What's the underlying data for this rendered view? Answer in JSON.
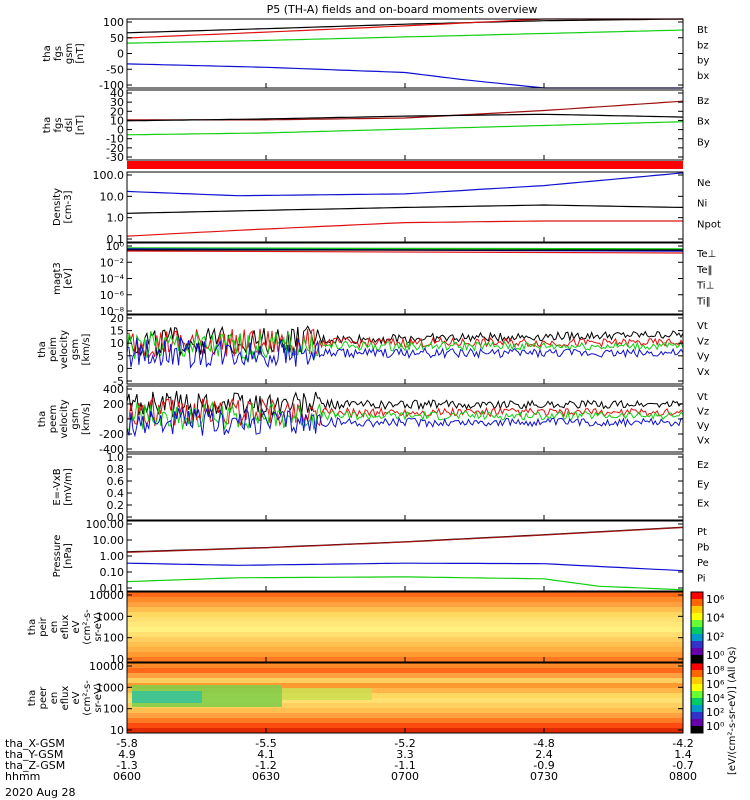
{
  "title": "P5 (TH-A) fields and on-board moments overview",
  "date_label": "2020 Aug 28",
  "colorbar": {
    "label": "[eV/(cm²-s-sr-eV)] (All Qs)",
    "ticks1": [
      "10⁶",
      "10⁴",
      "10²",
      "10⁰"
    ],
    "ticks2": [
      "10⁸",
      "10⁶",
      "10⁴",
      "10²",
      "10⁰"
    ]
  },
  "footer": {
    "rows": [
      {
        "label": "tha_X-GSM",
        "values": [
          "-5.8",
          "-5.5",
          "-5.2",
          "-4.8",
          "-4.2"
        ]
      },
      {
        "label": "tha_Y-GSM",
        "values": [
          "4.9",
          "4.1",
          "3.3",
          "2.4",
          "1.4"
        ]
      },
      {
        "label": "tha_Z-GSM",
        "values": [
          "-1.3",
          "-1.2",
          "-1.1",
          "-0.9",
          "-0.7"
        ]
      },
      {
        "label": "hhmm",
        "values": [
          "0600",
          "0630",
          "0700",
          "0730",
          "0800"
        ]
      }
    ]
  },
  "chart_data": [
    {
      "type": "line",
      "panel": "fgs_gsm",
      "ylabel": [
        "tha",
        "fgs",
        "gsm",
        "[nT]"
      ],
      "yticks": [
        "100",
        "50",
        "0",
        "-50",
        "-100"
      ],
      "ylim": [
        -100,
        100
      ],
      "series": [
        {
          "name": "Bt",
          "color": "#000000",
          "x": [
            0,
            0.25,
            0.5,
            0.75,
            1
          ],
          "y": [
            60,
            72,
            85,
            95,
            100
          ]
        },
        {
          "name": "bz",
          "color": "#e01010",
          "x": [
            0,
            0.25,
            0.5,
            0.75,
            1
          ],
          "y": [
            45,
            62,
            80,
            100,
            100
          ]
        },
        {
          "name": "by",
          "color": "#10d010",
          "x": [
            0,
            0.25,
            0.5,
            0.75,
            1
          ],
          "y": [
            30,
            38,
            48,
            58,
            68
          ]
        },
        {
          "name": "bx",
          "color": "#1010d0",
          "x": [
            0,
            0.25,
            0.5,
            0.6,
            0.75,
            1
          ],
          "y": [
            -30,
            -40,
            -55,
            -75,
            -100,
            -100
          ]
        }
      ]
    },
    {
      "type": "line",
      "panel": "fgs_dsl",
      "ylabel": [
        "tha",
        "fgs",
        "dsl",
        "[nT]"
      ],
      "yticks": [
        "40",
        "30",
        "20",
        "10",
        "0",
        "-10",
        "-20",
        "-30"
      ],
      "ylim": [
        -35,
        40
      ],
      "series": [
        {
          "name": "Bz",
          "color": "#a01010",
          "x": [
            0,
            0.25,
            0.5,
            0.75,
            1
          ],
          "y": [
            8,
            8,
            10,
            18,
            28
          ]
        },
        {
          "name": "Bx",
          "color": "#000000",
          "x": [
            0,
            0.25,
            0.5,
            0.75,
            1
          ],
          "y": [
            7,
            9,
            12,
            14,
            11
          ]
        },
        {
          "name": "By",
          "color": "#10d010",
          "x": [
            0,
            0.25,
            0.5,
            0.75,
            1
          ],
          "y": [
            -8,
            -6,
            -2,
            2,
            6
          ]
        }
      ]
    },
    {
      "type": "line",
      "panel": "density",
      "ylabel": [
        "Density",
        "[cm-3]"
      ],
      "yticks": [
        "100.0",
        "10.0",
        "1.0",
        "0.1"
      ],
      "ylim": [
        0.05,
        200
      ],
      "scale": "log",
      "series": [
        {
          "name": "Ne",
          "color": "#1010d0",
          "x": [
            0,
            0.2,
            0.5,
            0.75,
            1
          ],
          "y": [
            20,
            12,
            15,
            40,
            180
          ]
        },
        {
          "name": "Ni",
          "color": "#000000",
          "x": [
            0,
            0.2,
            0.5,
            0.75,
            1
          ],
          "y": [
            1.5,
            2,
            3,
            4,
            3
          ]
        },
        {
          "name": "Npot",
          "color": "#e01010",
          "x": [
            0,
            0.2,
            0.5,
            0.75,
            1
          ],
          "y": [
            0.1,
            0.2,
            0.5,
            0.6,
            0.6
          ]
        }
      ]
    },
    {
      "type": "line",
      "panel": "temperature",
      "ylabel": [
        "magt3",
        "[eV]"
      ],
      "yticks": [
        "10⁰",
        "10⁻²",
        "10⁻⁴",
        "10⁻⁶",
        "10⁻⁸"
      ],
      "series": [
        {
          "name": "Te⊥",
          "color": "#e01010"
        },
        {
          "name": "Te‖",
          "color": "#000000"
        },
        {
          "name": "Ti⊥",
          "color": "#1010d0"
        },
        {
          "name": "Ti‖",
          "color": "#10d010"
        }
      ]
    },
    {
      "type": "line",
      "panel": "peim_velocity",
      "ylabel": [
        "tha",
        "peim",
        "velocity",
        "gsm",
        "[km/s]"
      ],
      "yticks": [
        "20",
        "15",
        "10",
        "5",
        "0",
        "-5"
      ],
      "ylim": [
        -7,
        20
      ],
      "series": [
        {
          "name": "Vt",
          "color": "#000000"
        },
        {
          "name": "Vz",
          "color": "#e01010"
        },
        {
          "name": "Vy",
          "color": "#10d010"
        },
        {
          "name": "Vx",
          "color": "#1010d0"
        }
      ]
    },
    {
      "type": "line",
      "panel": "peem_velocity",
      "ylabel": [
        "tha",
        "peem",
        "velocity",
        "gsm",
        "[km/s]"
      ],
      "yticks": [
        "400",
        "200",
        "0",
        "-200",
        "-400"
      ],
      "ylim": [
        -400,
        400
      ],
      "series": [
        {
          "name": "Vt",
          "color": "#000000"
        },
        {
          "name": "Vz",
          "color": "#e01010"
        },
        {
          "name": "Vy",
          "color": "#10d010"
        },
        {
          "name": "Vx",
          "color": "#1010d0"
        }
      ]
    },
    {
      "type": "line",
      "panel": "efield",
      "ylabel": [
        "E=-VxB",
        "[mV/m]"
      ],
      "yticks": [
        "1.0",
        "0.8",
        "0.6",
        "0.4",
        "0.2",
        "0.0"
      ],
      "ylim": [
        0,
        1
      ],
      "series": [
        {
          "name": "Ez",
          "color": "#e01010"
        },
        {
          "name": "Ey",
          "color": "#10d010"
        },
        {
          "name": "Ex",
          "color": "#1010d0"
        }
      ]
    },
    {
      "type": "line",
      "panel": "pressure",
      "ylabel": [
        "Pressure",
        "[nPa]"
      ],
      "yticks": [
        "100.00",
        "10.00",
        "1.00",
        "0.10",
        "0.01"
      ],
      "ylim": [
        0.005,
        150
      ],
      "scale": "log",
      "series": [
        {
          "name": "Pt",
          "color": "#000000",
          "x": [
            0,
            0.25,
            0.5,
            0.75,
            1
          ],
          "y": [
            1.6,
            3,
            7,
            20,
            60
          ]
        },
        {
          "name": "Pb",
          "color": "#a01010",
          "x": [
            0,
            0.25,
            0.5,
            0.75,
            1
          ],
          "y": [
            1.5,
            2.9,
            6.8,
            19,
            58
          ]
        },
        {
          "name": "Pe",
          "color": "#10d010",
          "x": [
            0,
            0.2,
            0.5,
            0.75,
            0.85,
            1
          ],
          "y": [
            0.02,
            0.035,
            0.04,
            0.03,
            0.01,
            0.006
          ]
        },
        {
          "name": "Pi",
          "color": "#1010d0",
          "x": [
            0,
            0.2,
            0.5,
            0.75,
            0.9,
            1
          ],
          "y": [
            0.3,
            0.22,
            0.3,
            0.28,
            0.15,
            0.1
          ]
        }
      ]
    },
    {
      "type": "heatmap",
      "panel": "peir_eflux",
      "ylabel": [
        "tha",
        "peir",
        "en",
        "eflux",
        "eV",
        "(cm²-s-",
        "sr-eV)"
      ],
      "yticks": [
        "10000",
        "1000",
        "100",
        "10"
      ]
    },
    {
      "type": "heatmap",
      "panel": "peer_eflux",
      "ylabel": [
        "tha",
        "peer",
        "en",
        "eflux",
        "eV",
        "(cm²-s-",
        "sr-eV)"
      ],
      "yticks": [
        "10000",
        "1000",
        "100",
        "10"
      ]
    }
  ]
}
